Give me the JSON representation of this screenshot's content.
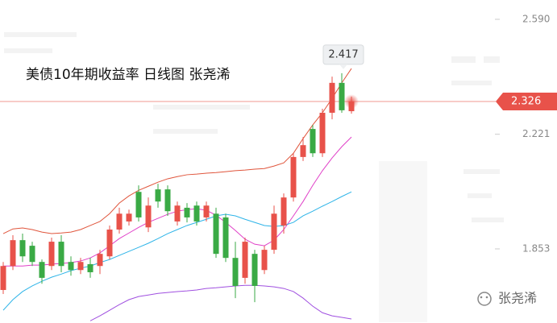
{
  "chart_data": {
    "type": "candlestick",
    "title": "美债10年期收益率  日线图  张尧浠",
    "ylim": [
      1.615,
      2.652
    ],
    "yticks": [
      {
        "value": 2.59,
        "label": "2.590"
      },
      2.221,
      1.853
    ],
    "up_color": "#e8524a",
    "down_color": "#3aaa45",
    "open": [
      1.721,
      1.798,
      1.881,
      1.863,
      1.811,
      1.798,
      1.876,
      1.811,
      1.785,
      1.804,
      1.798,
      1.829,
      1.915,
      1.941,
      2.036,
      1.922,
      2.044,
      2.044,
      1.941,
      1.985,
      1.992,
      1.954,
      1.966,
      1.954,
      1.824,
      1.76,
      1.837,
      1.785,
      1.85,
      1.928,
      2.018,
      2.148,
      2.238,
      2.16,
      2.29,
      2.386,
      2.295
    ],
    "high": [
      1.811,
      1.897,
      1.902,
      1.876,
      1.819,
      1.889,
      1.897,
      1.829,
      1.824,
      1.824,
      1.85,
      1.928,
      1.985,
      1.979,
      2.057,
      2.018,
      2.062,
      2.057,
      2.005,
      2.0,
      2.005,
      2.005,
      1.985,
      1.966,
      1.876,
      1.889,
      1.85,
      1.863,
      1.992,
      2.031,
      2.16,
      2.212,
      2.251,
      2.303,
      2.406,
      2.417,
      2.342
    ],
    "low": [
      1.708,
      1.785,
      1.811,
      1.798,
      1.741,
      1.785,
      1.778,
      1.767,
      1.772,
      1.76,
      1.772,
      1.819,
      1.902,
      1.928,
      1.941,
      1.907,
      1.985,
      1.959,
      1.928,
      1.938,
      1.928,
      1.941,
      1.824,
      1.811,
      1.695,
      1.741,
      1.682,
      1.772,
      1.837,
      1.902,
      2.005,
      2.135,
      2.148,
      2.148,
      2.269,
      2.29,
      2.287
    ],
    "close": [
      1.798,
      1.881,
      1.829,
      1.811,
      1.76,
      1.876,
      1.798,
      1.785,
      1.811,
      1.778,
      1.837,
      1.915,
      1.966,
      1.966,
      1.954,
      1.992,
      2.005,
      1.974,
      1.992,
      1.954,
      1.941,
      1.992,
      1.837,
      1.824,
      1.734,
      1.876,
      1.734,
      1.85,
      1.966,
      2.018,
      2.148,
      2.186,
      2.16,
      2.29,
      2.386,
      2.298,
      2.326
    ],
    "lines": [
      {
        "color": "#e0553c",
        "values": [
          1.902,
          1.917,
          1.92,
          1.915,
          1.907,
          1.902,
          1.904,
          1.907,
          1.915,
          1.928,
          1.941,
          1.966,
          2.0,
          2.023,
          2.041,
          2.054,
          2.067,
          2.078,
          2.085,
          2.091,
          2.093,
          2.096,
          2.098,
          2.101,
          2.104,
          2.106,
          2.109,
          2.111,
          2.119,
          2.129,
          2.16,
          2.207,
          2.251,
          2.29,
          2.336,
          2.386,
          2.432
        ]
      },
      {
        "color": "#e040c8",
        "values": [
          1.798,
          1.798,
          1.798,
          1.801,
          1.801,
          1.804,
          1.806,
          1.809,
          1.814,
          1.824,
          1.84,
          1.863,
          1.886,
          1.904,
          1.922,
          1.938,
          1.951,
          1.964,
          1.974,
          1.979,
          1.982,
          1.977,
          1.961,
          1.938,
          1.912,
          1.884,
          1.868,
          1.863,
          1.881,
          1.915,
          1.959,
          2.005,
          2.057,
          2.104,
          2.145,
          2.181,
          2.212
        ]
      },
      {
        "color": "#2eb4e8",
        "values": [
          1.656,
          1.69,
          1.716,
          1.734,
          1.749,
          1.762,
          1.772,
          1.783,
          1.791,
          1.798,
          1.809,
          1.819,
          1.832,
          1.845,
          1.858,
          1.871,
          1.886,
          1.902,
          1.915,
          1.928,
          1.938,
          1.948,
          1.959,
          1.964,
          1.959,
          1.948,
          1.938,
          1.928,
          1.925,
          1.928,
          1.938,
          1.959,
          1.974,
          1.99,
          2.005,
          2.021,
          2.036
        ]
      },
      {
        "color": "#a050e0",
        "values": [
          null,
          null,
          null,
          null,
          null,
          null,
          null,
          null,
          null,
          1.622,
          1.638,
          1.656,
          1.674,
          1.69,
          1.7,
          1.705,
          1.71,
          1.713,
          1.716,
          1.718,
          1.721,
          1.726,
          1.728,
          1.731,
          1.734,
          1.736,
          1.736,
          1.734,
          1.731,
          1.726,
          1.716,
          1.695,
          1.669,
          1.648,
          1.638,
          1.633,
          1.628
        ]
      }
    ],
    "last_price": 2.326,
    "last_price_color": "#e8524a",
    "high_annotation": 2.417,
    "watermark": "张尧浠"
  }
}
